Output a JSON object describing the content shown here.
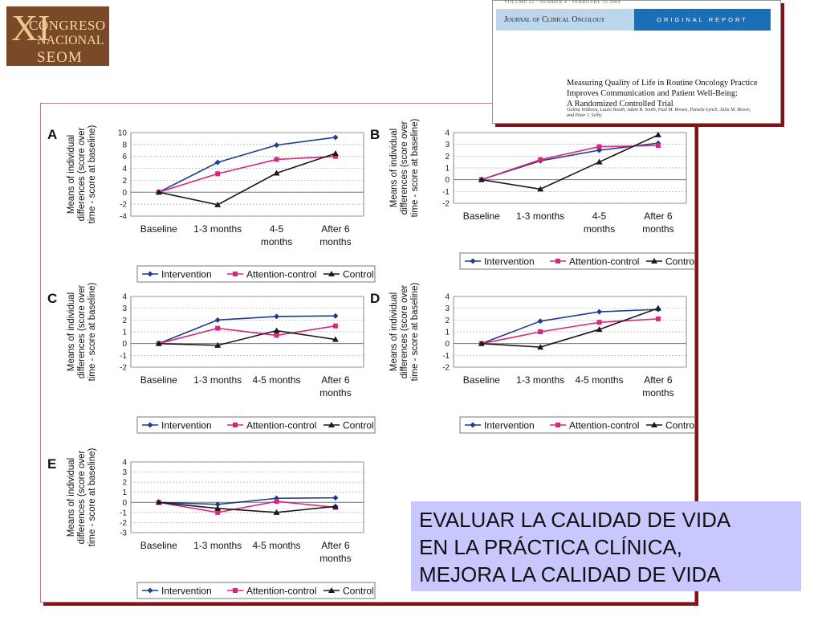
{
  "logo": {
    "roman": "XI",
    "line1": "CONGRESO",
    "line2": "NACIONAL",
    "line3": "SEOM"
  },
  "journal": {
    "volume_line": "VOLUME 22 · NUMBER 4 · FEBRUARY 15 2004",
    "name": "Journal of Clinical Oncology",
    "report_type": "ORIGINAL REPORT",
    "article_title": [
      "Measuring Quality of Life in Routine Oncology Practice",
      "Improves Communication and Patient Well-Being:",
      "A Randomized Controlled Trial"
    ],
    "authors": [
      "Galina Velikova, Laura Booth, Adam B. Smith, Paul M. Brown, Pamela Lynch, Julia M. Brown,",
      "and Peter J. Selby"
    ]
  },
  "caption": {
    "lines": [
      "EVALUAR LA CALIDAD DE VIDA",
      "EN LA PRÁCTICA CLÍNICA,",
      "MEJORA LA CALIDAD DE VIDA"
    ]
  },
  "colors": {
    "intervention": "#1f3d8f",
    "attention_control": "#d6277a",
    "control": "#1a1a1a",
    "figure_shadow": "#8a0f16",
    "caption_bg": "#c8c8ff",
    "journal_blue": "#1a6fb8"
  },
  "chart_data": [
    {
      "type": "line",
      "panel": "A",
      "categories": [
        "Baseline",
        "1-3 months",
        "4-5 months",
        "After 6 months"
      ],
      "ylabel": "Means of individual differences (score over time - score at baseline)",
      "ylim": [
        -4,
        10
      ],
      "yticks": [
        -4,
        -2,
        0,
        2,
        4,
        6,
        8,
        10
      ],
      "grid": true,
      "legend": "bottom",
      "series": [
        {
          "name": "Intervention",
          "marker": "diamond",
          "values": [
            0,
            5,
            7.9,
            9.2
          ]
        },
        {
          "name": "Attention-control",
          "marker": "square",
          "values": [
            0,
            3.1,
            5.5,
            6
          ]
        },
        {
          "name": "Control",
          "marker": "triangle",
          "values": [
            0,
            -2.1,
            3.2,
            6.5
          ]
        }
      ]
    },
    {
      "type": "line",
      "panel": "B",
      "categories": [
        "Baseline",
        "1-3 months",
        "4-5 months",
        "After 6 months"
      ],
      "ylabel": "Means of individual differences (score over time - score at baseline)",
      "ylim": [
        -2,
        4
      ],
      "yticks": [
        -2,
        -1,
        0,
        1,
        2,
        3,
        4
      ],
      "grid": true,
      "legend": "bottom",
      "series": [
        {
          "name": "Intervention",
          "marker": "diamond",
          "values": [
            0,
            1.6,
            2.5,
            3.1
          ]
        },
        {
          "name": "Attention-control",
          "marker": "square",
          "values": [
            0,
            1.7,
            2.8,
            2.9
          ]
        },
        {
          "name": "Control",
          "marker": "triangle",
          "values": [
            0,
            -0.8,
            1.5,
            3.8
          ]
        }
      ]
    },
    {
      "type": "line",
      "panel": "C",
      "categories": [
        "Baseline",
        "1-3 months",
        "4-5 months",
        "After 6 months"
      ],
      "ylabel": "Means of individual differences (score over time - score at baseline)",
      "ylim": [
        -2,
        4
      ],
      "yticks": [
        -2,
        -1,
        0,
        1,
        2,
        3,
        4
      ],
      "grid": true,
      "legend": "bottom",
      "series": [
        {
          "name": "Intervention",
          "marker": "diamond",
          "values": [
            0,
            2,
            2.3,
            2.35
          ]
        },
        {
          "name": "Attention-control",
          "marker": "square",
          "values": [
            0,
            1.3,
            0.7,
            1.5
          ]
        },
        {
          "name": "Control",
          "marker": "triangle",
          "values": [
            0,
            -0.15,
            1.1,
            0.35
          ]
        }
      ]
    },
    {
      "type": "line",
      "panel": "D",
      "categories": [
        "Baseline",
        "1-3 months",
        "4-5 months",
        "After 6 months"
      ],
      "ylabel": "Means of individual differences (score over time - score at baseline)",
      "ylim": [
        -2,
        4
      ],
      "yticks": [
        -2,
        -1,
        0,
        1,
        2,
        3,
        4
      ],
      "grid": true,
      "legend": "bottom",
      "series": [
        {
          "name": "Intervention",
          "marker": "diamond",
          "values": [
            0,
            1.9,
            2.7,
            2.9
          ]
        },
        {
          "name": "Attention-control",
          "marker": "square",
          "values": [
            0,
            1,
            1.8,
            2.1
          ]
        },
        {
          "name": "Control",
          "marker": "triangle",
          "values": [
            0,
            -0.3,
            1.2,
            3
          ]
        }
      ]
    },
    {
      "type": "line",
      "panel": "E",
      "categories": [
        "Baseline",
        "1-3 months",
        "4-5 months",
        "After 6 months"
      ],
      "ylabel": "Means of individual differences (score over time - score at baseline)",
      "ylim": [
        -3,
        4
      ],
      "yticks": [
        -3,
        -2,
        -1,
        0,
        1,
        2,
        3,
        4
      ],
      "grid": true,
      "legend": "bottom",
      "series": [
        {
          "name": "Intervention",
          "marker": "diamond",
          "values": [
            0,
            -0.2,
            0.4,
            0.45
          ]
        },
        {
          "name": "Attention-control",
          "marker": "square",
          "values": [
            0,
            -1,
            0.1,
            -0.5
          ]
        },
        {
          "name": "Control",
          "marker": "triangle",
          "values": [
            0,
            -0.6,
            -1,
            -0.4
          ]
        }
      ]
    }
  ]
}
